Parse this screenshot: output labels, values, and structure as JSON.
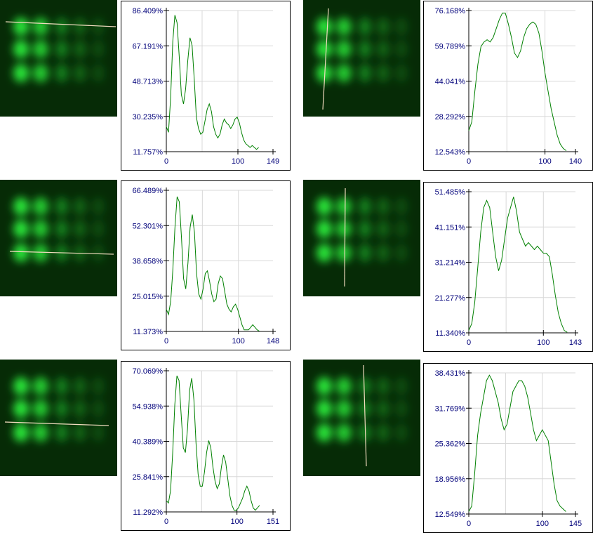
{
  "colors": {
    "curve": "#008000",
    "axis": "#000000",
    "grid": "#d8d8d8",
    "tick_text": "#00007a",
    "profile_line": "#f2dcc0",
    "spot": "#29e63a",
    "background_dark": "#062b06"
  },
  "chart_data": [
    {
      "type": "line",
      "y_ticks": [
        "86.409%",
        "67.191%",
        "48.713%",
        "30.235%",
        "11.757%"
      ],
      "ylim": [
        11.757,
        86.409
      ],
      "x_ticks": [
        "0",
        "100",
        "149"
      ],
      "xlim": [
        0,
        149
      ],
      "grid": true,
      "points": [
        [
          0,
          25
        ],
        [
          3,
          22
        ],
        [
          6,
          40
        ],
        [
          9,
          70
        ],
        [
          12,
          84
        ],
        [
          15,
          80
        ],
        [
          18,
          62
        ],
        [
          21,
          42
        ],
        [
          24,
          37
        ],
        [
          27,
          45
        ],
        [
          30,
          60
        ],
        [
          33,
          72
        ],
        [
          36,
          68
        ],
        [
          39,
          50
        ],
        [
          42,
          30
        ],
        [
          45,
          24
        ],
        [
          48,
          21
        ],
        [
          51,
          22
        ],
        [
          54,
          28
        ],
        [
          57,
          34
        ],
        [
          60,
          37
        ],
        [
          63,
          33
        ],
        [
          66,
          25
        ],
        [
          69,
          21
        ],
        [
          72,
          19
        ],
        [
          75,
          21
        ],
        [
          78,
          26
        ],
        [
          81,
          29
        ],
        [
          84,
          27
        ],
        [
          87,
          26
        ],
        [
          90,
          24
        ],
        [
          93,
          26
        ],
        [
          96,
          29
        ],
        [
          99,
          30
        ],
        [
          102,
          27
        ],
        [
          105,
          22
        ],
        [
          108,
          18
        ],
        [
          111,
          16
        ],
        [
          114,
          15
        ],
        [
          117,
          14
        ],
        [
          120,
          15
        ],
        [
          123,
          14
        ],
        [
          126,
          13
        ],
        [
          129,
          14
        ]
      ]
    },
    {
      "type": "line",
      "y_ticks": [
        "76.168%",
        "59.789%",
        "44.041%",
        "28.292%",
        "12.543%"
      ],
      "ylim": [
        12.543,
        76.168
      ],
      "x_ticks": [
        "0",
        "100",
        "140"
      ],
      "xlim": [
        0,
        140
      ],
      "grid": true,
      "points": [
        [
          0,
          22
        ],
        [
          4,
          26
        ],
        [
          8,
          40
        ],
        [
          12,
          52
        ],
        [
          16,
          60
        ],
        [
          20,
          62
        ],
        [
          24,
          63
        ],
        [
          28,
          62
        ],
        [
          32,
          64
        ],
        [
          36,
          68
        ],
        [
          40,
          72
        ],
        [
          44,
          75
        ],
        [
          48,
          75
        ],
        [
          52,
          70
        ],
        [
          56,
          64
        ],
        [
          60,
          57
        ],
        [
          64,
          55
        ],
        [
          68,
          58
        ],
        [
          72,
          64
        ],
        [
          76,
          68
        ],
        [
          80,
          70
        ],
        [
          84,
          71
        ],
        [
          88,
          70
        ],
        [
          92,
          66
        ],
        [
          96,
          58
        ],
        [
          100,
          48
        ],
        [
          104,
          40
        ],
        [
          108,
          32
        ],
        [
          112,
          26
        ],
        [
          116,
          20
        ],
        [
          120,
          16
        ],
        [
          124,
          14
        ],
        [
          128,
          13
        ]
      ]
    },
    {
      "type": "line",
      "y_ticks": [
        "66.489%",
        "52.301%",
        "38.658%",
        "25.015%",
        "11.373%"
      ],
      "ylim": [
        11.373,
        66.489
      ],
      "x_ticks": [
        "0",
        "100",
        "148"
      ],
      "xlim": [
        0,
        148
      ],
      "grid": true,
      "points": [
        [
          0,
          20
        ],
        [
          3,
          18
        ],
        [
          6,
          23
        ],
        [
          9,
          35
        ],
        [
          12,
          52
        ],
        [
          15,
          64
        ],
        [
          18,
          62
        ],
        [
          21,
          48
        ],
        [
          24,
          32
        ],
        [
          27,
          28
        ],
        [
          30,
          38
        ],
        [
          33,
          52
        ],
        [
          36,
          57
        ],
        [
          39,
          50
        ],
        [
          42,
          34
        ],
        [
          45,
          26
        ],
        [
          48,
          24
        ],
        [
          51,
          28
        ],
        [
          54,
          34
        ],
        [
          57,
          35
        ],
        [
          60,
          31
        ],
        [
          63,
          26
        ],
        [
          66,
          23
        ],
        [
          69,
          24
        ],
        [
          72,
          30
        ],
        [
          75,
          33
        ],
        [
          78,
          32
        ],
        [
          81,
          27
        ],
        [
          84,
          22
        ],
        [
          87,
          20
        ],
        [
          90,
          19
        ],
        [
          93,
          21
        ],
        [
          96,
          22
        ],
        [
          99,
          20
        ],
        [
          102,
          17
        ],
        [
          105,
          14
        ],
        [
          108,
          12
        ],
        [
          111,
          12
        ],
        [
          114,
          12
        ],
        [
          117,
          13
        ],
        [
          120,
          14
        ],
        [
          123,
          13
        ],
        [
          126,
          12
        ],
        [
          129,
          11.5
        ]
      ]
    },
    {
      "type": "line",
      "y_ticks": [
        "51.485%",
        "41.151%",
        "31.214%",
        "21.277%",
        "11.340%"
      ],
      "ylim": [
        11.34,
        51.485
      ],
      "x_ticks": [
        "0",
        "100",
        "143"
      ],
      "xlim": [
        0,
        143
      ],
      "grid": true,
      "points": [
        [
          0,
          12
        ],
        [
          4,
          14
        ],
        [
          8,
          20
        ],
        [
          12,
          30
        ],
        [
          16,
          40
        ],
        [
          20,
          47
        ],
        [
          24,
          49
        ],
        [
          28,
          47
        ],
        [
          32,
          40
        ],
        [
          36,
          33
        ],
        [
          40,
          29
        ],
        [
          44,
          32
        ],
        [
          48,
          38
        ],
        [
          52,
          44
        ],
        [
          56,
          47
        ],
        [
          60,
          50
        ],
        [
          64,
          46
        ],
        [
          68,
          40
        ],
        [
          72,
          38
        ],
        [
          76,
          36
        ],
        [
          80,
          37
        ],
        [
          84,
          36
        ],
        [
          88,
          35
        ],
        [
          92,
          36
        ],
        [
          96,
          35
        ],
        [
          100,
          34
        ],
        [
          104,
          34
        ],
        [
          108,
          33
        ],
        [
          112,
          28
        ],
        [
          116,
          22
        ],
        [
          120,
          17
        ],
        [
          124,
          14
        ],
        [
          128,
          12
        ],
        [
          132,
          11.5
        ]
      ]
    },
    {
      "type": "line",
      "y_ticks": [
        "70.069%",
        "54.938%",
        "40.389%",
        "25.841%",
        "11.292%"
      ],
      "ylim": [
        11.292,
        70.069
      ],
      "x_ticks": [
        "0",
        "100",
        "151"
      ],
      "xlim": [
        0,
        151
      ],
      "grid": true,
      "points": [
        [
          0,
          16
        ],
        [
          3,
          15
        ],
        [
          6,
          20
        ],
        [
          9,
          36
        ],
        [
          12,
          56
        ],
        [
          15,
          68
        ],
        [
          18,
          66
        ],
        [
          21,
          52
        ],
        [
          24,
          38
        ],
        [
          27,
          36
        ],
        [
          30,
          46
        ],
        [
          33,
          62
        ],
        [
          36,
          67
        ],
        [
          39,
          58
        ],
        [
          42,
          40
        ],
        [
          45,
          27
        ],
        [
          48,
          22
        ],
        [
          51,
          22
        ],
        [
          54,
          28
        ],
        [
          57,
          36
        ],
        [
          60,
          41
        ],
        [
          63,
          38
        ],
        [
          66,
          30
        ],
        [
          69,
          24
        ],
        [
          72,
          21
        ],
        [
          75,
          23
        ],
        [
          78,
          30
        ],
        [
          81,
          35
        ],
        [
          84,
          32
        ],
        [
          87,
          25
        ],
        [
          90,
          18
        ],
        [
          93,
          14
        ],
        [
          96,
          12
        ],
        [
          99,
          12
        ],
        [
          102,
          13
        ],
        [
          105,
          15
        ],
        [
          108,
          17
        ],
        [
          111,
          20
        ],
        [
          114,
          22
        ],
        [
          117,
          20
        ],
        [
          120,
          16
        ],
        [
          123,
          13
        ],
        [
          126,
          12
        ],
        [
          129,
          13
        ],
        [
          132,
          14
        ]
      ]
    },
    {
      "type": "line",
      "y_ticks": [
        "38.431%",
        "31.769%",
        "25.362%",
        "18.956%",
        "12.549%"
      ],
      "ylim": [
        12.549,
        38.431
      ],
      "x_ticks": [
        "0",
        "100",
        "145"
      ],
      "xlim": [
        0,
        145
      ],
      "grid": true,
      "points": [
        [
          0,
          13
        ],
        [
          4,
          14
        ],
        [
          8,
          20
        ],
        [
          12,
          27
        ],
        [
          16,
          31
        ],
        [
          20,
          34
        ],
        [
          24,
          37
        ],
        [
          28,
          38
        ],
        [
          32,
          37
        ],
        [
          36,
          35
        ],
        [
          40,
          33
        ],
        [
          44,
          30
        ],
        [
          48,
          28
        ],
        [
          52,
          29
        ],
        [
          56,
          32
        ],
        [
          60,
          35
        ],
        [
          64,
          36
        ],
        [
          68,
          37
        ],
        [
          72,
          37
        ],
        [
          76,
          36
        ],
        [
          80,
          34
        ],
        [
          84,
          31
        ],
        [
          88,
          28
        ],
        [
          92,
          26
        ],
        [
          96,
          27
        ],
        [
          100,
          28
        ],
        [
          104,
          27
        ],
        [
          108,
          26
        ],
        [
          112,
          22
        ],
        [
          116,
          18
        ],
        [
          120,
          15
        ],
        [
          124,
          14
        ],
        [
          128,
          13.5
        ],
        [
          132,
          13
        ]
      ]
    }
  ],
  "thumbnails": [
    {
      "line": [
        [
          8,
          31
        ],
        [
          165,
          38
        ]
      ]
    },
    {
      "line": [
        [
          468,
          12
        ],
        [
          460,
          156
        ]
      ]
    },
    {
      "line": [
        [
          14,
          358
        ],
        [
          162,
          362
        ]
      ]
    },
    {
      "line": [
        [
          492,
          268
        ],
        [
          491,
          408
        ]
      ]
    },
    {
      "line": [
        [
          7,
          601
        ],
        [
          155,
          606
        ]
      ]
    },
    {
      "line": [
        [
          518,
          520
        ],
        [
          522,
          664
        ]
      ]
    }
  ]
}
